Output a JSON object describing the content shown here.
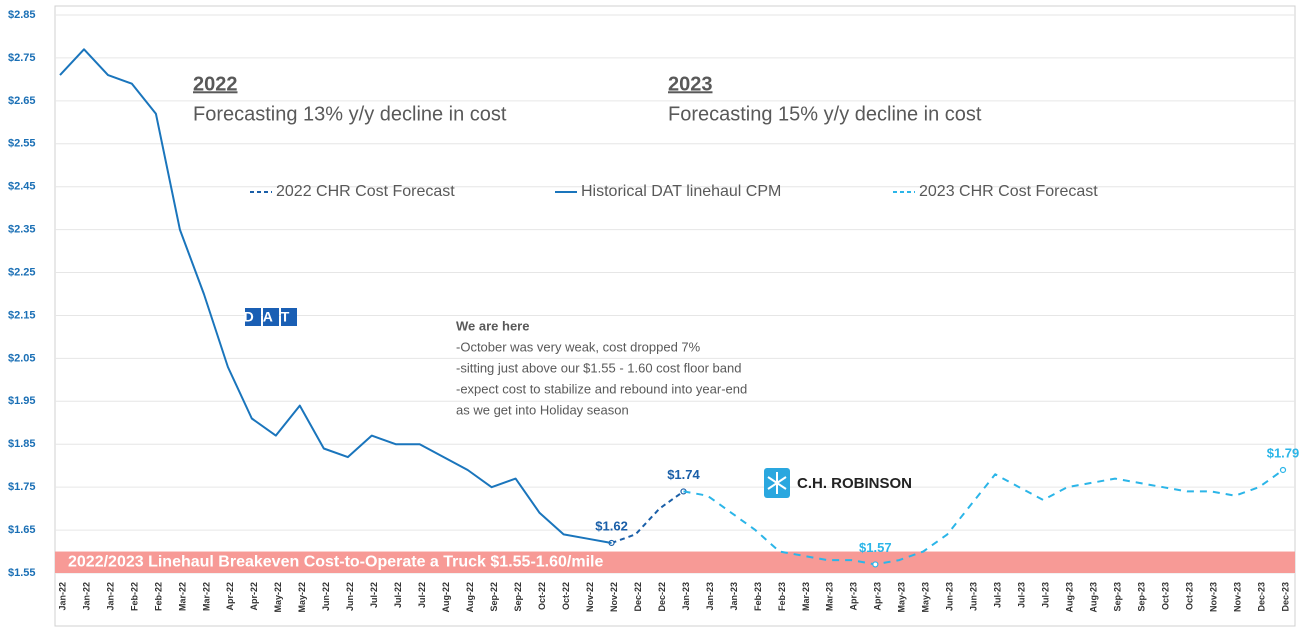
{
  "chart_data": {
    "type": "line",
    "categories": [
      "Jan-22",
      "Jan-22",
      "Jan-22",
      "Feb-22",
      "Feb-22",
      "Mar-22",
      "Mar-22",
      "Apr-22",
      "Apr-22",
      "May-22",
      "May-22",
      "Jun-22",
      "Jun-22",
      "Jul-22",
      "Jul-22",
      "Jul-22",
      "Aug-22",
      "Aug-22",
      "Sep-22",
      "Sep-22",
      "Oct-22",
      "Oct-22",
      "Nov-22",
      "Nov-22",
      "Dec-22",
      "Dec-22",
      "Jan-23",
      "Jan-23",
      "Jan-23",
      "Feb-23",
      "Feb-23",
      "Mar-23",
      "Mar-23",
      "Apr-23",
      "Apr-23",
      "May-23",
      "May-23",
      "Jun-23",
      "Jun-23",
      "Jul-23",
      "Jul-23",
      "Jul-23",
      "Aug-23",
      "Aug-23",
      "Sep-23",
      "Sep-23",
      "Oct-23",
      "Oct-23",
      "Nov-23",
      "Nov-23",
      "Dec-23",
      "Dec-23"
    ],
    "series": [
      {
        "name": "2022 CHR Cost Forecast",
        "color": "#1a5fa8",
        "dash": "5,4",
        "values": [
          null,
          null,
          null,
          null,
          null,
          null,
          null,
          null,
          null,
          null,
          null,
          null,
          null,
          null,
          null,
          null,
          null,
          null,
          null,
          null,
          null,
          null,
          null,
          1.62,
          1.64,
          1.7,
          1.74,
          null,
          null,
          null,
          null,
          null,
          null,
          null,
          null,
          null,
          null,
          null,
          null,
          null,
          null,
          null,
          null,
          null,
          null,
          null,
          null,
          null,
          null,
          null,
          null,
          null
        ],
        "value_labels": [
          null,
          null,
          null,
          null,
          null,
          null,
          null,
          null,
          null,
          null,
          null,
          null,
          null,
          null,
          null,
          null,
          null,
          null,
          null,
          null,
          null,
          null,
          null,
          "$1.62",
          null,
          null,
          "$1.74",
          null,
          null,
          null,
          null,
          null,
          null,
          null,
          null,
          null,
          null,
          null,
          null,
          null,
          null,
          null,
          null,
          null,
          null,
          null,
          null,
          null,
          null,
          null,
          null,
          null
        ]
      },
      {
        "name": "Historical DAT linehaul CPM",
        "color": "#1a75bc",
        "dash": "none",
        "values": [
          2.71,
          2.77,
          2.71,
          2.69,
          2.62,
          2.35,
          2.2,
          2.03,
          1.91,
          1.87,
          1.94,
          1.84,
          1.82,
          1.87,
          1.85,
          1.85,
          1.82,
          1.79,
          1.75,
          1.77,
          1.69,
          1.64,
          1.63,
          1.62,
          null,
          null,
          null,
          null,
          null,
          null,
          null,
          null,
          null,
          null,
          null,
          null,
          null,
          null,
          null,
          null,
          null,
          null,
          null,
          null,
          null,
          null,
          null,
          null,
          null,
          null,
          null,
          null
        ]
      },
      {
        "name": "2023 CHR Cost Forecast",
        "color": "#2bb5e8",
        "dash": "7,6",
        "values": [
          null,
          null,
          null,
          null,
          null,
          null,
          null,
          null,
          null,
          null,
          null,
          null,
          null,
          null,
          null,
          null,
          null,
          null,
          null,
          null,
          null,
          null,
          null,
          null,
          null,
          null,
          1.74,
          1.73,
          1.69,
          1.65,
          1.6,
          1.59,
          1.58,
          1.58,
          1.57,
          1.58,
          1.6,
          1.64,
          1.71,
          1.78,
          1.75,
          1.72,
          1.75,
          1.76,
          1.77,
          1.76,
          1.75,
          1.74,
          1.74,
          1.73,
          1.75,
          1.79
        ],
        "value_labels": [
          null,
          null,
          null,
          null,
          null,
          null,
          null,
          null,
          null,
          null,
          null,
          null,
          null,
          null,
          null,
          null,
          null,
          null,
          null,
          null,
          null,
          null,
          null,
          null,
          null,
          null,
          null,
          null,
          null,
          null,
          null,
          null,
          null,
          null,
          "$1.57",
          null,
          null,
          null,
          null,
          null,
          null,
          null,
          null,
          null,
          null,
          null,
          null,
          null,
          null,
          null,
          null,
          "$1.79"
        ]
      }
    ],
    "ylim": [
      1.55,
      2.85
    ],
    "yticks": [
      {
        "value": 1.55,
        "label": "$1.55"
      },
      {
        "value": 1.65,
        "label": "$1.65"
      },
      {
        "value": 1.75,
        "label": "$1.75"
      },
      {
        "value": 1.85,
        "label": "$1.85"
      },
      {
        "value": 1.95,
        "label": "$1.95"
      },
      {
        "value": 2.05,
        "label": "$2.05"
      },
      {
        "value": 2.15,
        "label": "$2.15"
      },
      {
        "value": 2.25,
        "label": "$2.25"
      },
      {
        "value": 2.35,
        "label": "$2.35"
      },
      {
        "value": 2.45,
        "label": "$2.45"
      },
      {
        "value": 2.55,
        "label": "$2.55"
      },
      {
        "value": 2.65,
        "label": "$2.65"
      },
      {
        "value": 2.75,
        "label": "$2.75"
      },
      {
        "value": 2.85,
        "label": "$2.85"
      }
    ],
    "grid": true,
    "band": {
      "label": "2022/2023 Linehaul Breakeven Cost-to-Operate a Truck $1.55-1.60/mile",
      "range": [
        1.55,
        1.6
      ],
      "color": "#f79a96"
    },
    "annotations": [
      {
        "heading": "2022",
        "text": "Forecasting 13% y/y decline in cost"
      },
      {
        "heading": "2023",
        "text": "Forecasting 15% y/y decline in cost"
      }
    ],
    "note": {
      "title": "We are here",
      "lines": [
        "-October was very weak, cost dropped 7%",
        "-sitting just above our $1.55 - 1.60 cost floor band",
        "-expect cost to stabilize and rebound into year-end",
        "as we get into Holiday season"
      ]
    },
    "logos": [
      "DAT",
      "C.H. ROBINSON"
    ]
  }
}
